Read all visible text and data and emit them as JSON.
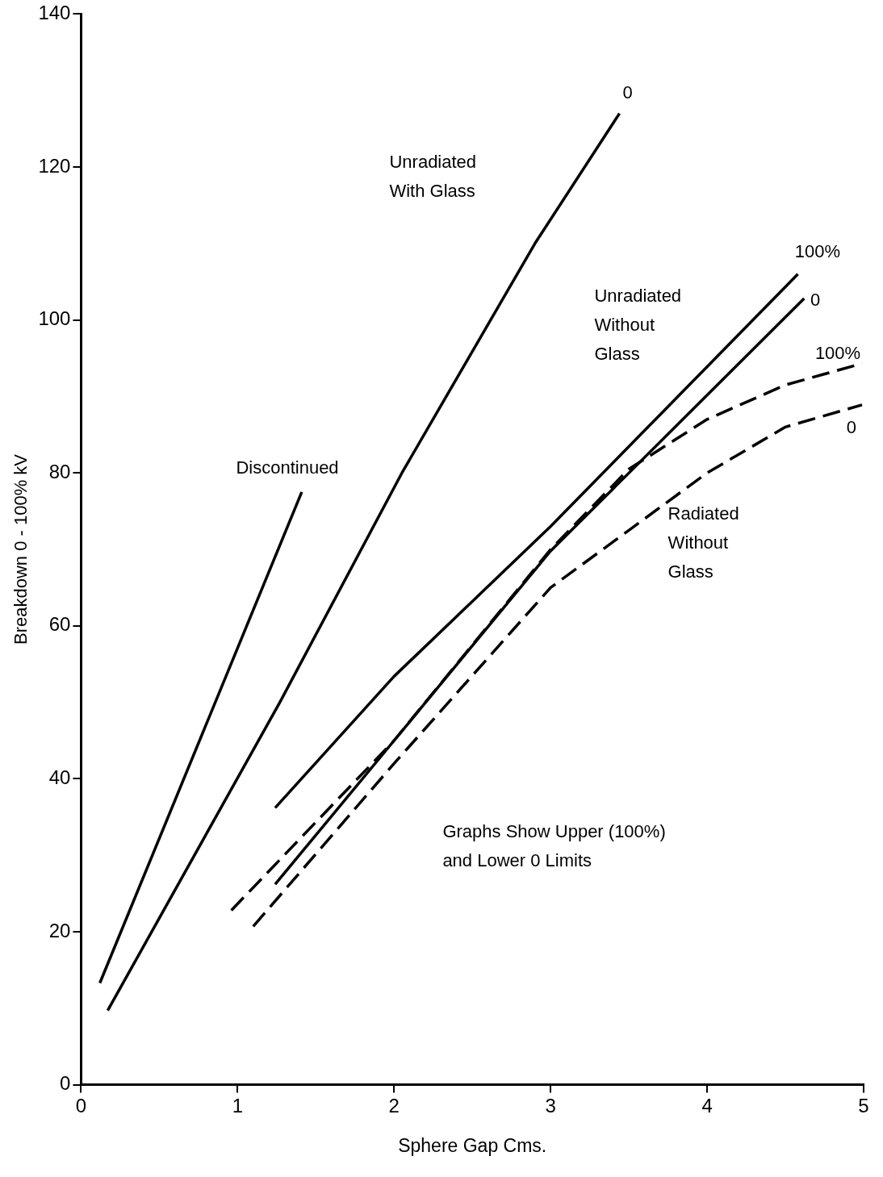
{
  "chart_data": {
    "type": "line",
    "xlabel": "Sphere Gap Cms.",
    "ylabel": "Breakdown 0 - 100% kV",
    "xlim": [
      0,
      5
    ],
    "xticks": [
      0,
      1,
      2,
      3,
      4,
      5
    ],
    "ylim": [
      0,
      140
    ],
    "yticks": [
      0,
      20,
      40,
      60,
      80,
      100,
      120,
      140
    ],
    "grid": false,
    "legend": false,
    "marker": "none",
    "series": [
      {
        "color": "#000000",
        "line_style": "solid",
        "x": [
          0.12,
          1.41
        ],
        "values": [
          13.3,
          77.5
        ]
      },
      {
        "color": "#000000",
        "line_style": "solid",
        "x": [
          0.17,
          1.27,
          2.05,
          2.9,
          3.44
        ],
        "values": [
          9.7,
          50,
          80,
          110,
          127
        ]
      },
      {
        "color": "#000000",
        "line_style": "solid",
        "x": [
          1.24,
          2,
          3,
          4.58
        ],
        "values": [
          36.2,
          53.4,
          73,
          106
        ]
      },
      {
        "color": "#000000",
        "line_style": "solid",
        "x": [
          1.24,
          2,
          3,
          4.62
        ],
        "values": [
          26.2,
          45,
          69.8,
          102.8
        ]
      },
      {
        "color": "#000000",
        "line_style": "dashed",
        "x": [
          0.96,
          2,
          3,
          3.5,
          4,
          4.5,
          4.99
        ],
        "values": [
          22.8,
          45,
          70,
          80.5,
          87,
          91.5,
          94.3
        ]
      },
      {
        "color": "#000000",
        "line_style": "dashed",
        "x": [
          1.1,
          2,
          3,
          3.5,
          4,
          4.5,
          4.99
        ],
        "values": [
          20.7,
          42,
          65,
          72.5,
          80,
          86,
          88.9
        ]
      }
    ],
    "annotations": [
      "Discontinued",
      "Unradiated\nWith Glass",
      "Unradiated\nWithout\nGlass",
      "Radiated\nWithout\nGlass",
      "0",
      "100%",
      "0",
      "100%",
      "0",
      "Graphs Show Upper (100%)\nand Lower 0 Limits"
    ]
  }
}
